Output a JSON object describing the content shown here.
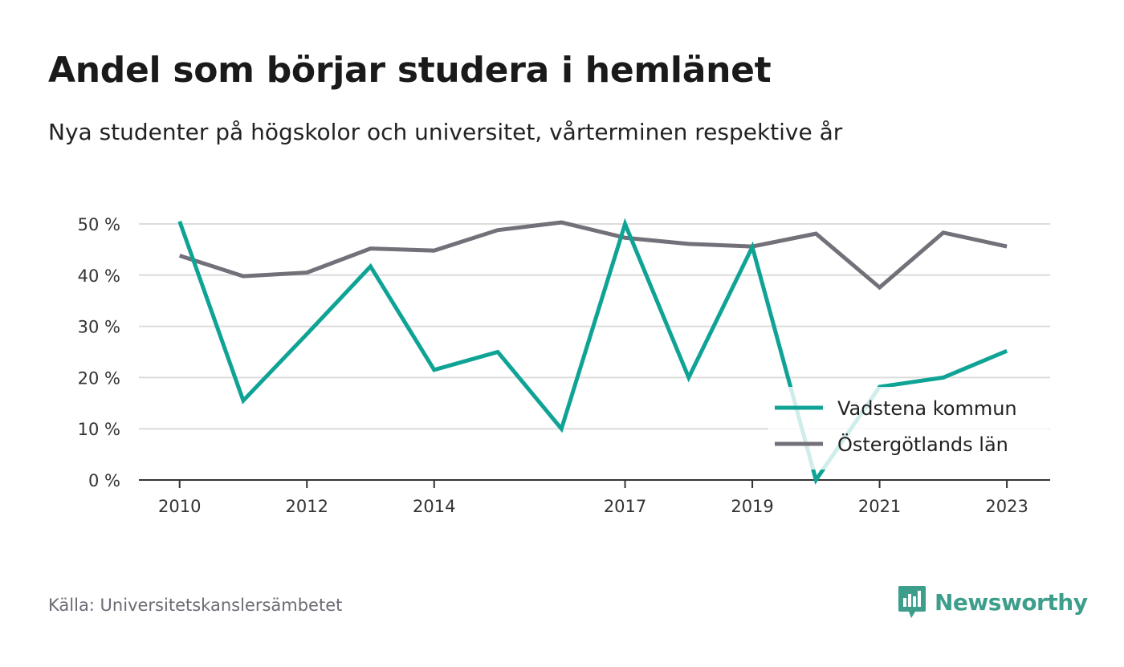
{
  "title": "Andel som börjar studera i hemlänet",
  "subtitle": "Nya studenter på högskolor och universitet, vårterminen respektive år",
  "source": "Källa: Universitetskanslersämbetet",
  "brand": {
    "name": "Newsworthy",
    "color": "#3d9e8c",
    "icon": "newsworthy-logo-icon"
  },
  "chart_data": {
    "type": "line",
    "x": [
      2010,
      2011,
      2012,
      2013,
      2014,
      2015,
      2016,
      2017,
      2018,
      2019,
      2020,
      2021,
      2022,
      2023
    ],
    "x_tick_labels": [
      "2010",
      "2012",
      "2014",
      "2017",
      "2019",
      "2021",
      "2023"
    ],
    "y_ticks": [
      0,
      10,
      20,
      30,
      40,
      50
    ],
    "y_tick_labels": [
      "0 %",
      "10 %",
      "20 %",
      "30 %",
      "40 %",
      "50 %"
    ],
    "ylim": [
      0,
      50
    ],
    "xlabel": "",
    "ylabel": "",
    "grid": true,
    "legend_position": "bottom-right",
    "series": [
      {
        "name": "Vadstena kommun",
        "color": "#0fa396",
        "values": [
          50.5,
          15.5,
          28.5,
          41.7,
          21.5,
          25.0,
          10.0,
          50.0,
          20.0,
          45.5,
          0.0,
          18.2,
          20.0,
          25.2
        ]
      },
      {
        "name": "Östergötlands län",
        "color": "#737079",
        "values": [
          43.8,
          39.8,
          40.5,
          45.2,
          44.8,
          48.8,
          50.3,
          47.3,
          46.1,
          45.6,
          48.1,
          37.6,
          48.3,
          45.6
        ]
      }
    ]
  }
}
